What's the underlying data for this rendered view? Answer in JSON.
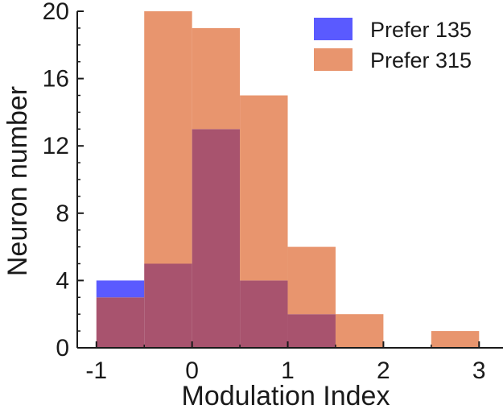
{
  "chart_data": {
    "type": "bar",
    "title": "",
    "xlabel": "Modulation Index",
    "ylabel": "Neuron number",
    "xlim": [
      -1.2,
      3.25
    ],
    "ylim": [
      0,
      20
    ],
    "xticks": [
      -1,
      0,
      1,
      2,
      3
    ],
    "xtick_labels": [
      "-1",
      "0",
      "1",
      "2",
      "3"
    ],
    "yticks": [
      0,
      4,
      8,
      12,
      16,
      20
    ],
    "ytick_labels": [
      "0",
      "4",
      "8",
      "12",
      "16",
      "20"
    ],
    "bin_edges": [
      -1,
      -0.5,
      0,
      0.5,
      1,
      1.5,
      2,
      2.5,
      3
    ],
    "series": [
      {
        "name": "Prefer 135",
        "color": "#5a5aff",
        "values": [
          4,
          5,
          13,
          4,
          2,
          0,
          0,
          0
        ]
      },
      {
        "name": "Prefer 315",
        "color": "#e8956e",
        "values": [
          3,
          20,
          19,
          15,
          6,
          2,
          0,
          1
        ]
      }
    ],
    "overlap_color": "#a8536e",
    "legend_position": "top-right",
    "grid": false
  }
}
